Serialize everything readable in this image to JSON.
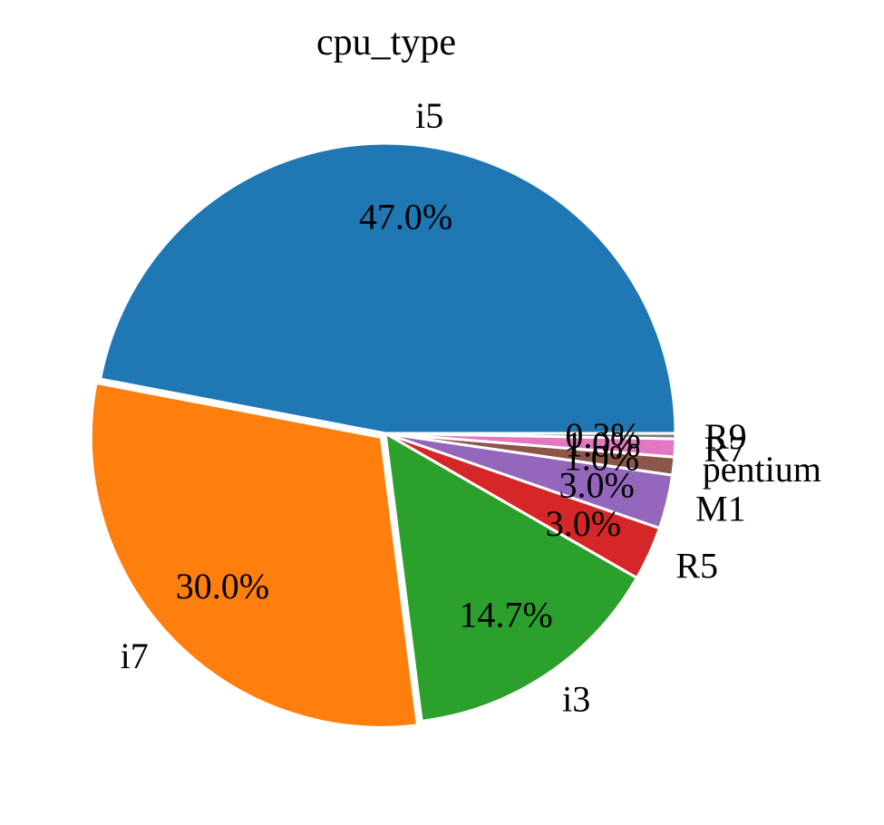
{
  "chart_data": {
    "type": "pie",
    "title": "cpu_type",
    "categories": [
      "i5",
      "i7",
      "i3",
      "R5",
      "M1",
      "pentium",
      "R7",
      "R9"
    ],
    "values": [
      47.0,
      30.0,
      14.7,
      3.0,
      3.0,
      1.0,
      1.0,
      0.3
    ],
    "percent_labels": [
      "47.0%",
      "30.0%",
      "14.7%",
      "3.0%",
      "3.0%",
      "1.0%",
      "1.0%",
      "0.3%"
    ],
    "colors": [
      "#1f77b4",
      "#ff7f0e",
      "#2ca02c",
      "#d62728",
      "#9467bd",
      "#8c564b",
      "#e377c2",
      "#7f7f7f"
    ],
    "start_angle_deg": 0,
    "direction": "counterclockwise",
    "exploded": [
      "i7"
    ],
    "legend": "none",
    "grid": false
  }
}
